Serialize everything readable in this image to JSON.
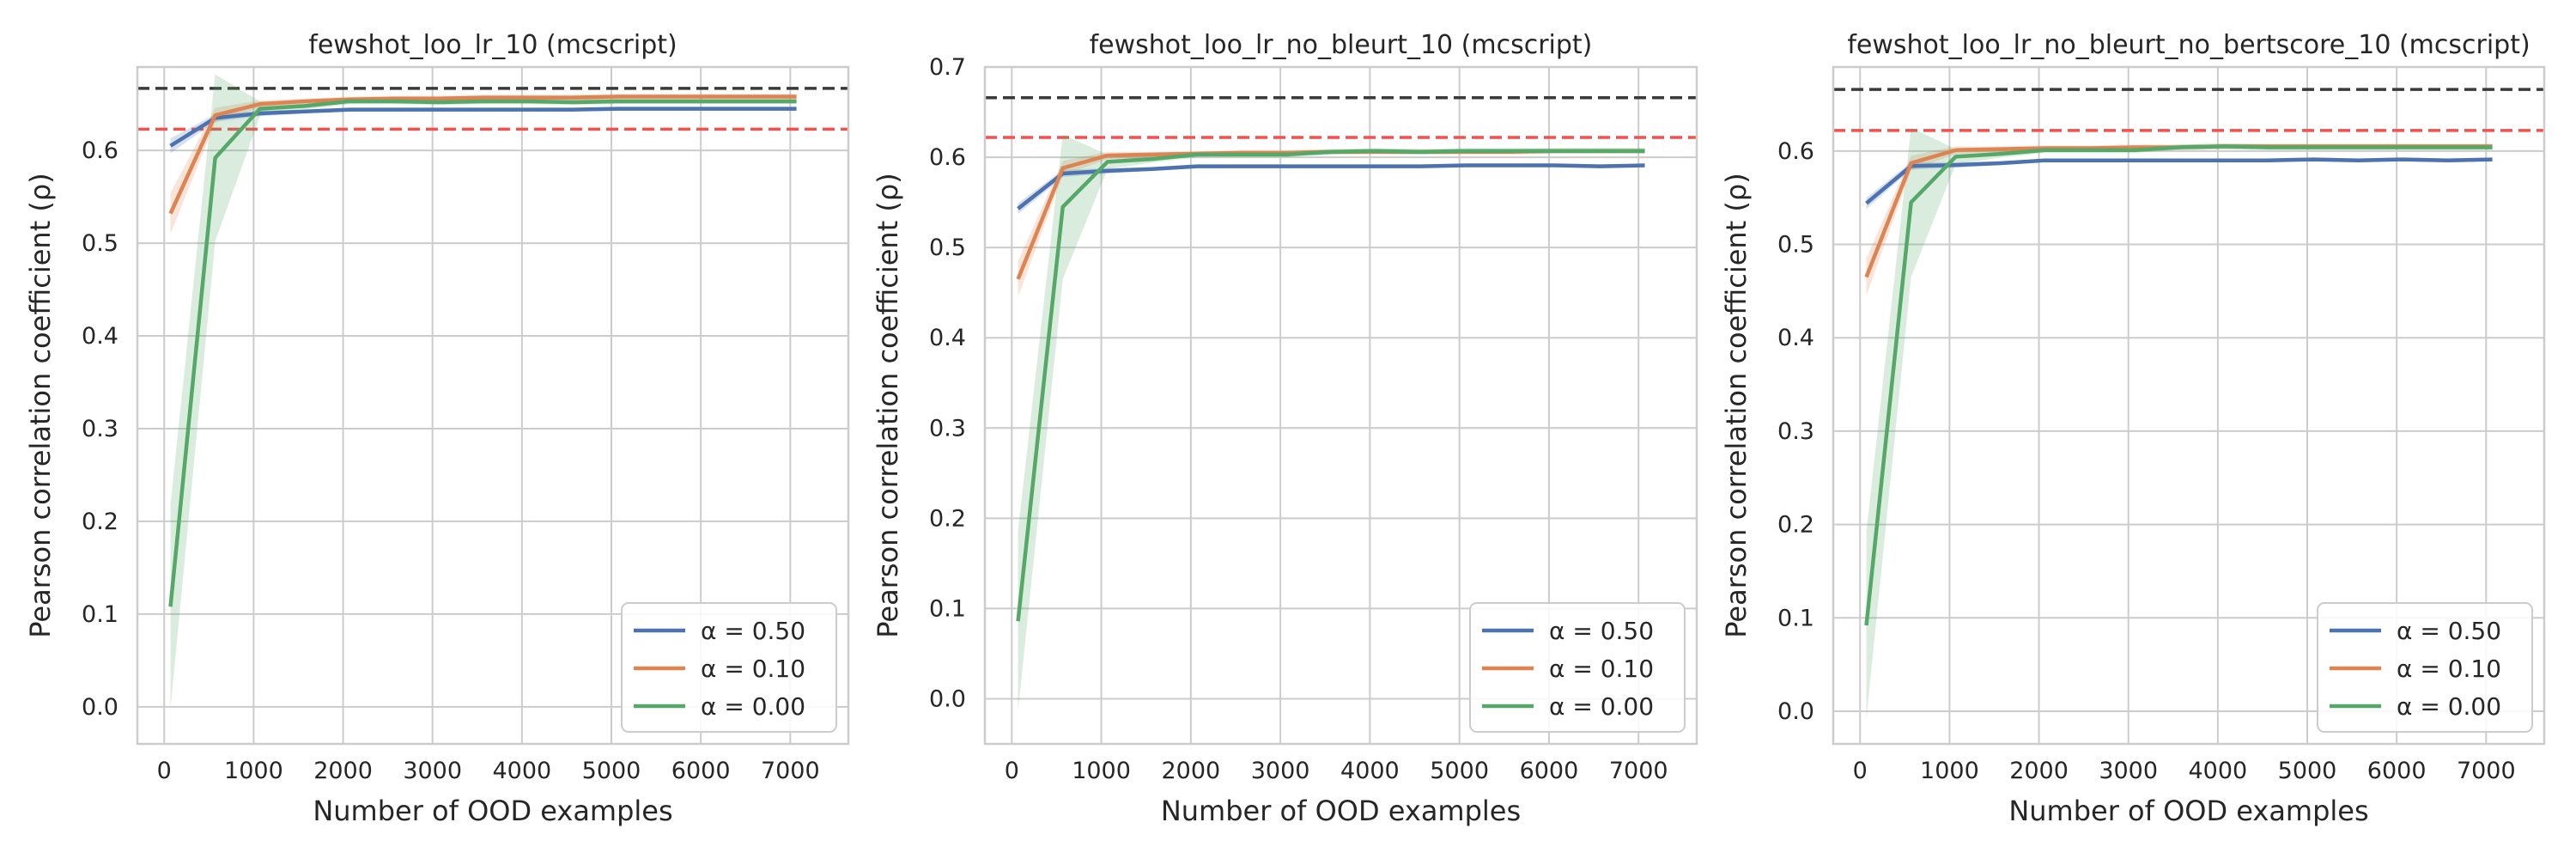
{
  "colors": {
    "series": [
      "#4c72b0",
      "#dd8452",
      "#55a868"
    ],
    "ref_black": "#3a3a3a",
    "ref_red": "#f0524d",
    "grid": "#cccccc",
    "frame": "#cccccc"
  },
  "chart_data": [
    {
      "type": "line",
      "title": "fewshot_loo_lr_10 (mcscript)",
      "xlabel": "Number of OOD examples",
      "ylabel": "Pearson correlation coefficient (ρ)",
      "xlim": [
        -300,
        7650
      ],
      "ylim": [
        -0.04,
        0.69
      ],
      "xticks": [
        0,
        1000,
        2000,
        3000,
        4000,
        5000,
        6000,
        7000
      ],
      "yticks": [
        0.0,
        0.1,
        0.2,
        0.3,
        0.4,
        0.5,
        0.6
      ],
      "grid": true,
      "legend": "lower-right",
      "reference_lines": [
        {
          "y": 0.667,
          "style": "dashed",
          "color": "black"
        },
        {
          "y": 0.623,
          "style": "dashed",
          "color": "red"
        }
      ],
      "series": [
        {
          "name": "α = 0.50",
          "x": [
            70,
            570,
            1070,
            1570,
            2070,
            2570,
            3070,
            3570,
            4070,
            4570,
            5070,
            5570,
            6070,
            6570,
            7070
          ],
          "y": [
            0.605,
            0.635,
            0.64,
            0.642,
            0.644,
            0.644,
            0.644,
            0.644,
            0.644,
            0.644,
            0.645,
            0.645,
            0.645,
            0.645,
            0.645
          ],
          "band": [
            0.008,
            0.004,
            0.003,
            0.002,
            0.002,
            0.002,
            0.002,
            0.002,
            0.002,
            0.002,
            0.002,
            0.002,
            0.002,
            0.002,
            0.002
          ]
        },
        {
          "name": "α = 0.10",
          "x": [
            70,
            570,
            1070,
            1570,
            2070,
            2570,
            3070,
            3570,
            4070,
            4570,
            5070,
            5570,
            6070,
            6570,
            7070
          ],
          "y": [
            0.532,
            0.638,
            0.65,
            0.653,
            0.655,
            0.656,
            0.656,
            0.657,
            0.657,
            0.657,
            0.658,
            0.658,
            0.658,
            0.658,
            0.658
          ],
          "band": [
            0.022,
            0.008,
            0.004,
            0.003,
            0.003,
            0.003,
            0.003,
            0.003,
            0.003,
            0.003,
            0.003,
            0.003,
            0.003,
            0.003,
            0.003
          ]
        },
        {
          "name": "α = 0.00",
          "x": [
            70,
            570,
            1070,
            1570,
            2070,
            2570,
            3070,
            3570,
            4070,
            4570,
            5070,
            5570,
            6070,
            6570,
            7070
          ],
          "y": [
            0.108,
            0.592,
            0.645,
            0.648,
            0.653,
            0.653,
            0.652,
            0.653,
            0.653,
            0.652,
            0.653,
            0.653,
            0.653,
            0.653,
            0.653
          ],
          "band": [
            0.11,
            0.09,
            0.008,
            0.004,
            0.003,
            0.003,
            0.003,
            0.003,
            0.003,
            0.003,
            0.003,
            0.003,
            0.003,
            0.003,
            0.003
          ]
        }
      ]
    },
    {
      "type": "line",
      "title": "fewshot_loo_lr_no_bleurt_10 (mcscript)",
      "xlabel": "Number of OOD examples",
      "ylabel": "Pearson correlation coefficient (ρ)",
      "xlim": [
        -300,
        7650
      ],
      "ylim": [
        -0.05,
        0.7
      ],
      "xticks": [
        0,
        1000,
        2000,
        3000,
        4000,
        5000,
        6000,
        7000
      ],
      "yticks": [
        0.0,
        0.1,
        0.2,
        0.3,
        0.4,
        0.5,
        0.6,
        0.7
      ],
      "grid": true,
      "legend": "lower-right",
      "reference_lines": [
        {
          "y": 0.666,
          "style": "dashed",
          "color": "black"
        },
        {
          "y": 0.622,
          "style": "dashed",
          "color": "red"
        }
      ],
      "series": [
        {
          "name": "α = 0.50",
          "x": [
            70,
            570,
            1070,
            1570,
            2070,
            2570,
            3070,
            3570,
            4070,
            4570,
            5070,
            5570,
            6070,
            6570,
            7070
          ],
          "y": [
            0.543,
            0.582,
            0.585,
            0.587,
            0.59,
            0.59,
            0.59,
            0.59,
            0.59,
            0.59,
            0.591,
            0.591,
            0.591,
            0.59,
            0.591
          ],
          "band": [
            0.006,
            0.004,
            0.003,
            0.002,
            0.002,
            0.002,
            0.002,
            0.002,
            0.002,
            0.002,
            0.002,
            0.002,
            0.002,
            0.002,
            0.002
          ]
        },
        {
          "name": "α = 0.10",
          "x": [
            70,
            570,
            1070,
            1570,
            2070,
            2570,
            3070,
            3570,
            4070,
            4570,
            5070,
            5570,
            6070,
            6570,
            7070
          ],
          "y": [
            0.465,
            0.588,
            0.602,
            0.603,
            0.604,
            0.605,
            0.605,
            0.606,
            0.606,
            0.606,
            0.606,
            0.606,
            0.607,
            0.607,
            0.607
          ],
          "band": [
            0.02,
            0.008,
            0.004,
            0.003,
            0.003,
            0.003,
            0.003,
            0.003,
            0.003,
            0.003,
            0.003,
            0.003,
            0.003,
            0.003,
            0.003
          ]
        },
        {
          "name": "α = 0.00",
          "x": [
            70,
            570,
            1070,
            1570,
            2070,
            2570,
            3070,
            3570,
            4070,
            4570,
            5070,
            5570,
            6070,
            6570,
            7070
          ],
          "y": [
            0.086,
            0.545,
            0.595,
            0.598,
            0.603,
            0.603,
            0.603,
            0.606,
            0.607,
            0.606,
            0.607,
            0.607,
            0.607,
            0.607,
            0.607
          ],
          "band": [
            0.1,
            0.08,
            0.008,
            0.004,
            0.003,
            0.003,
            0.003,
            0.003,
            0.003,
            0.003,
            0.003,
            0.003,
            0.003,
            0.003,
            0.003
          ]
        }
      ]
    },
    {
      "type": "line",
      "title": "fewshot_loo_lr_no_bleurt_no_bertscore_10 (mcscript)",
      "xlabel": "Number of OOD examples",
      "ylabel": "Pearson correlation coefficient (ρ)",
      "xlim": [
        -300,
        7650
      ],
      "ylim": [
        -0.035,
        0.69
      ],
      "xticks": [
        0,
        1000,
        2000,
        3000,
        4000,
        5000,
        6000,
        7000
      ],
      "yticks": [
        0.0,
        0.1,
        0.2,
        0.3,
        0.4,
        0.5,
        0.6
      ],
      "grid": true,
      "legend": "lower-right",
      "reference_lines": [
        {
          "y": 0.666,
          "style": "dashed",
          "color": "black"
        },
        {
          "y": 0.622,
          "style": "dashed",
          "color": "red"
        }
      ],
      "series": [
        {
          "name": "α = 0.50",
          "x": [
            70,
            570,
            1070,
            1570,
            2070,
            2570,
            3070,
            3570,
            4070,
            4570,
            5070,
            5570,
            6070,
            6570,
            7070
          ],
          "y": [
            0.544,
            0.584,
            0.585,
            0.587,
            0.59,
            0.59,
            0.59,
            0.59,
            0.59,
            0.59,
            0.591,
            0.59,
            0.591,
            0.59,
            0.591
          ],
          "band": [
            0.006,
            0.004,
            0.003,
            0.002,
            0.002,
            0.002,
            0.002,
            0.002,
            0.002,
            0.002,
            0.002,
            0.002,
            0.002,
            0.002,
            0.002
          ]
        },
        {
          "name": "α = 0.10",
          "x": [
            70,
            570,
            1070,
            1570,
            2070,
            2570,
            3070,
            3570,
            4070,
            4570,
            5070,
            5570,
            6070,
            6570,
            7070
          ],
          "y": [
            0.465,
            0.587,
            0.601,
            0.602,
            0.603,
            0.603,
            0.604,
            0.604,
            0.605,
            0.605,
            0.605,
            0.605,
            0.605,
            0.605,
            0.605
          ],
          "band": [
            0.02,
            0.008,
            0.004,
            0.003,
            0.003,
            0.003,
            0.003,
            0.003,
            0.003,
            0.003,
            0.003,
            0.003,
            0.003,
            0.003,
            0.003
          ]
        },
        {
          "name": "α = 0.00",
          "x": [
            70,
            570,
            1070,
            1570,
            2070,
            2570,
            3070,
            3570,
            4070,
            4570,
            5070,
            5570,
            6070,
            6570,
            7070
          ],
          "y": [
            0.092,
            0.545,
            0.594,
            0.597,
            0.601,
            0.601,
            0.601,
            0.604,
            0.605,
            0.604,
            0.604,
            0.604,
            0.604,
            0.604,
            0.604
          ],
          "band": [
            0.1,
            0.08,
            0.008,
            0.004,
            0.003,
            0.003,
            0.003,
            0.003,
            0.003,
            0.003,
            0.003,
            0.003,
            0.003,
            0.003,
            0.003
          ]
        }
      ]
    }
  ]
}
